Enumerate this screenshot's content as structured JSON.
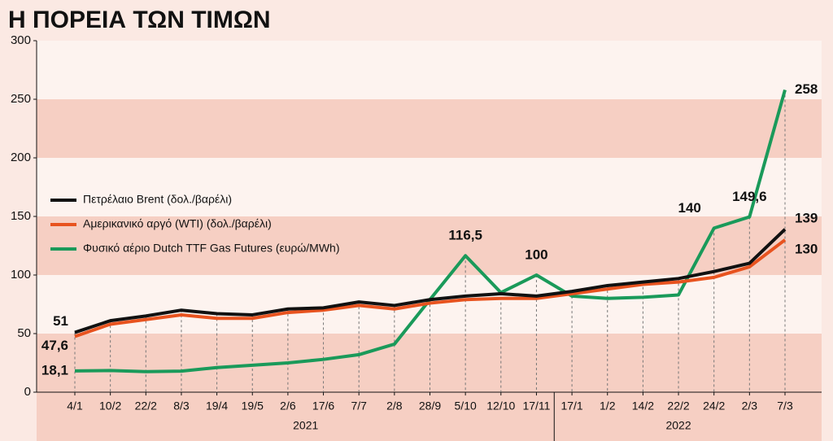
{
  "chart_data": {
    "type": "line",
    "title": "Η ΠΟΡΕΙΑ ΤΩΝ ΤΙΜΩΝ",
    "groups": [
      {
        "label": "2021",
        "categories": [
          "4/1",
          "10/2",
          "22/2",
          "8/3",
          "19/4",
          "19/5",
          "2/6",
          "17/6",
          "7/7",
          "2/8",
          "28/9",
          "5/10",
          "12/10",
          "17/11"
        ]
      },
      {
        "label": "2022",
        "categories": [
          "17/1",
          "1/2",
          "14/2",
          "22/2",
          "24/2",
          "2/3",
          "7/3"
        ]
      }
    ],
    "series": [
      {
        "name": "Πετρέλαιο Brent (δολ./βαρέλι)",
        "color": "#111111",
        "values": [
          51,
          61,
          65,
          70,
          67,
          66,
          71,
          72,
          77,
          74,
          79,
          82,
          84,
          82,
          86,
          91,
          94,
          97,
          103,
          110,
          139
        ],
        "value_labels": [
          "51",
          null,
          null,
          null,
          null,
          null,
          null,
          null,
          null,
          null,
          null,
          null,
          null,
          null,
          null,
          null,
          null,
          null,
          null,
          null,
          "139"
        ]
      },
      {
        "name": "Αμερικανικό αργό (WTI) (δολ./βαρέλι)",
        "color": "#e8531f",
        "values": [
          47.6,
          58,
          62,
          66,
          63,
          63,
          68,
          70,
          74,
          71,
          76,
          79,
          80,
          80,
          84,
          88,
          92,
          94,
          98,
          107,
          130
        ],
        "value_labels": [
          "47,6",
          null,
          null,
          null,
          null,
          null,
          null,
          null,
          null,
          null,
          null,
          null,
          null,
          null,
          null,
          null,
          null,
          null,
          null,
          null,
          "130"
        ]
      },
      {
        "name": "Φυσικό αέριο Dutch TTF Gas Futures (ευρώ/MWh)",
        "color": "#1a9a5a",
        "values": [
          18.1,
          18.5,
          17.5,
          18,
          21,
          23,
          25,
          28,
          32,
          41,
          79,
          116.5,
          85,
          100,
          82,
          80,
          81,
          83,
          140,
          149.6,
          258
        ],
        "value_labels": [
          "18,1",
          null,
          null,
          null,
          null,
          null,
          null,
          null,
          null,
          null,
          null,
          "116,5",
          null,
          "100",
          null,
          null,
          null,
          null,
          "140",
          "149,6",
          "258"
        ]
      }
    ],
    "ylim": [
      0,
      300
    ],
    "yticks": [
      0,
      50,
      100,
      150,
      200,
      250,
      300
    ]
  }
}
